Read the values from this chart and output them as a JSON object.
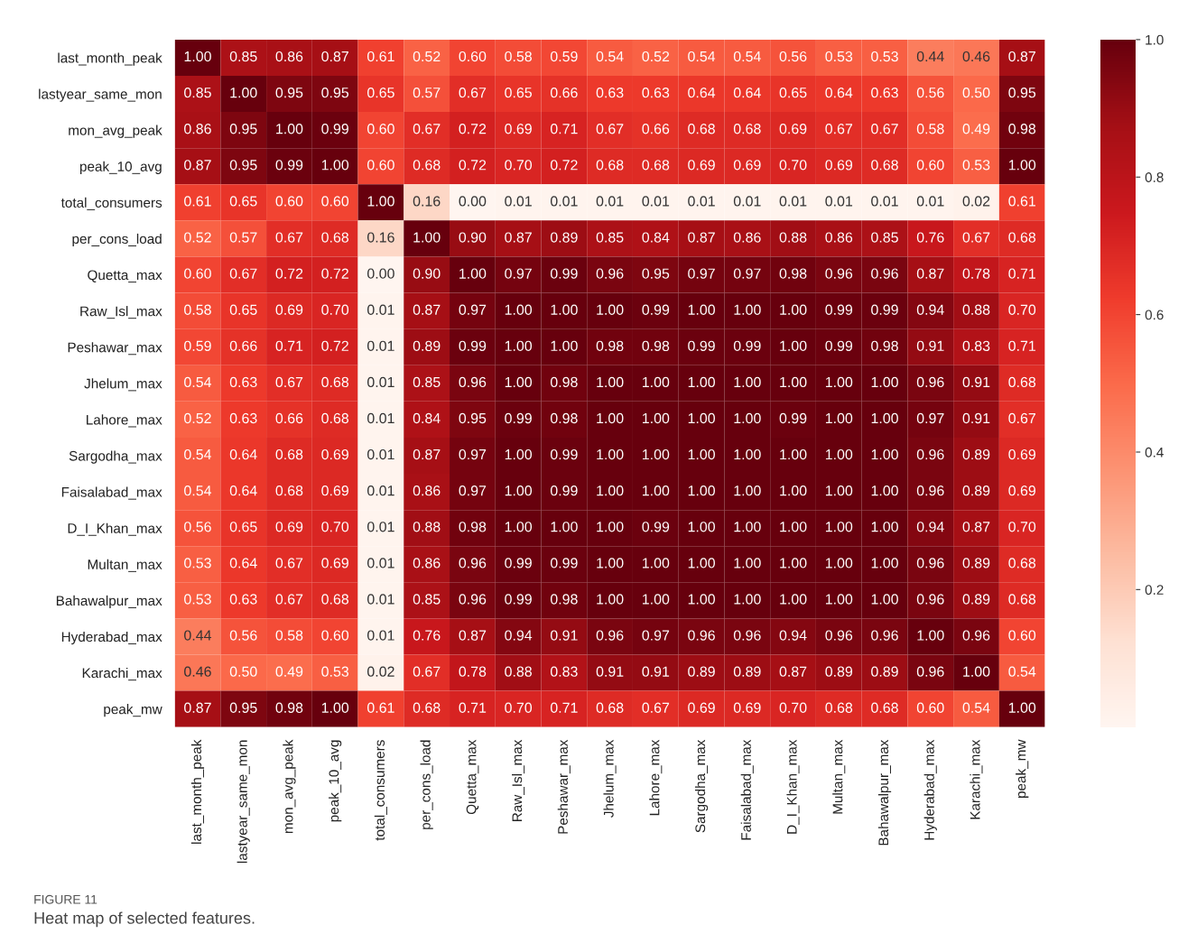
{
  "chart_data": {
    "type": "heatmap",
    "categories": [
      "last_month_peak",
      "lastyear_same_mon",
      "mon_avg_peak",
      "peak_10_avg",
      "total_consumers",
      "per_cons_load",
      "Quetta_max",
      "Raw_Isl_max",
      "Peshawar_max",
      "Jhelum_max",
      "Lahore_max",
      "Sargodha_max",
      "Faisalabad_max",
      "D_I_Khan_max",
      "Multan_max",
      "Bahawalpur_max",
      "Hyderabad_max",
      "Karachi_max",
      "peak_mw"
    ],
    "y_categories": [
      "last_month_peak",
      "lastyear_same_mon",
      "mon_avg_peak",
      "peak_10_avg",
      "total_consumers",
      "per_cons_load",
      "Quetta_max",
      "Raw_Isl_max",
      "Peshawar_max",
      "Jhelum_max",
      "Lahore_max",
      "Sargodha_max",
      "Faisalabad_max",
      "D_I_Khan_max",
      "Multan_max",
      "Bahawalpur_max",
      "Hyderabad_max",
      "Karachi_max",
      "peak_mw"
    ],
    "cells": [
      [
        1.0,
        0.85,
        0.86,
        0.87,
        0.61,
        0.52,
        0.6,
        0.58,
        0.59,
        0.54,
        0.52,
        0.54,
        0.54,
        0.56,
        0.53,
        0.53,
        0.44,
        0.46,
        0.87
      ],
      [
        0.85,
        1.0,
        0.95,
        0.95,
        0.65,
        0.57,
        0.67,
        0.65,
        0.66,
        0.63,
        0.63,
        0.64,
        0.64,
        0.65,
        0.64,
        0.63,
        0.56,
        0.5,
        0.95
      ],
      [
        0.86,
        0.95,
        1.0,
        0.99,
        0.6,
        0.67,
        0.72,
        0.69,
        0.71,
        0.67,
        0.66,
        0.68,
        0.68,
        0.69,
        0.67,
        0.67,
        0.58,
        0.49,
        0.98
      ],
      [
        0.87,
        0.95,
        0.99,
        1.0,
        0.6,
        0.68,
        0.72,
        0.7,
        0.72,
        0.68,
        0.68,
        0.69,
        0.69,
        0.7,
        0.69,
        0.68,
        0.6,
        0.53,
        1.0
      ],
      [
        0.61,
        0.65,
        0.6,
        0.6,
        1.0,
        0.16,
        0.0,
        0.01,
        0.01,
        0.01,
        0.01,
        0.01,
        0.01,
        0.01,
        0.01,
        0.01,
        0.01,
        0.02,
        0.61
      ],
      [
        0.52,
        0.57,
        0.67,
        0.68,
        0.16,
        1.0,
        0.9,
        0.87,
        0.89,
        0.85,
        0.84,
        0.87,
        0.86,
        0.88,
        0.86,
        0.85,
        0.76,
        0.67,
        0.68
      ],
      [
        0.6,
        0.67,
        0.72,
        0.72,
        0.0,
        0.9,
        1.0,
        0.97,
        0.99,
        0.96,
        0.95,
        0.97,
        0.97,
        0.98,
        0.96,
        0.96,
        0.87,
        0.78,
        0.71
      ],
      [
        0.58,
        0.65,
        0.69,
        0.7,
        0.01,
        0.87,
        0.97,
        1.0,
        1.0,
        1.0,
        0.99,
        1.0,
        1.0,
        1.0,
        0.99,
        0.99,
        0.94,
        0.88,
        0.7
      ],
      [
        0.59,
        0.66,
        0.71,
        0.72,
        0.01,
        0.89,
        0.99,
        1.0,
        1.0,
        0.98,
        0.98,
        0.99,
        0.99,
        1.0,
        0.99,
        0.98,
        0.91,
        0.83,
        0.71
      ],
      [
        0.54,
        0.63,
        0.67,
        0.68,
        0.01,
        0.85,
        0.96,
        1.0,
        0.98,
        1.0,
        1.0,
        1.0,
        1.0,
        1.0,
        1.0,
        1.0,
        0.96,
        0.91,
        0.68
      ],
      [
        0.52,
        0.63,
        0.66,
        0.68,
        0.01,
        0.84,
        0.95,
        0.99,
        0.98,
        1.0,
        1.0,
        1.0,
        1.0,
        0.99,
        1.0,
        1.0,
        0.97,
        0.91,
        0.67
      ],
      [
        0.54,
        0.64,
        0.68,
        0.69,
        0.01,
        0.87,
        0.97,
        1.0,
        0.99,
        1.0,
        1.0,
        1.0,
        1.0,
        1.0,
        1.0,
        1.0,
        0.96,
        0.89,
        0.69
      ],
      [
        0.54,
        0.64,
        0.68,
        0.69,
        0.01,
        0.86,
        0.97,
        1.0,
        0.99,
        1.0,
        1.0,
        1.0,
        1.0,
        1.0,
        1.0,
        1.0,
        0.96,
        0.89,
        0.69
      ],
      [
        0.56,
        0.65,
        0.69,
        0.7,
        0.01,
        0.88,
        0.98,
        1.0,
        1.0,
        1.0,
        0.99,
        1.0,
        1.0,
        1.0,
        1.0,
        1.0,
        0.94,
        0.87,
        0.7
      ],
      [
        0.53,
        0.64,
        0.67,
        0.69,
        0.01,
        0.86,
        0.96,
        0.99,
        0.99,
        1.0,
        1.0,
        1.0,
        1.0,
        1.0,
        1.0,
        1.0,
        0.96,
        0.89,
        0.68
      ],
      [
        0.53,
        0.63,
        0.67,
        0.68,
        0.01,
        0.85,
        0.96,
        0.99,
        0.98,
        1.0,
        1.0,
        1.0,
        1.0,
        1.0,
        1.0,
        1.0,
        0.96,
        0.89,
        0.68
      ],
      [
        0.44,
        0.56,
        0.58,
        0.6,
        0.01,
        0.76,
        0.87,
        0.94,
        0.91,
        0.96,
        0.97,
        0.96,
        0.96,
        0.94,
        0.96,
        0.96,
        1.0,
        0.96,
        0.6
      ],
      [
        0.46,
        0.5,
        0.49,
        0.53,
        0.02,
        0.67,
        0.78,
        0.88,
        0.83,
        0.91,
        0.91,
        0.89,
        0.89,
        0.87,
        0.89,
        0.89,
        0.96,
        1.0,
        0.54
      ],
      [
        0.87,
        0.95,
        0.98,
        1.0,
        0.61,
        0.68,
        0.71,
        0.7,
        0.71,
        0.68,
        0.67,
        0.69,
        0.69,
        0.7,
        0.68,
        0.68,
        0.6,
        0.54,
        1.0
      ]
    ],
    "cell_labels": [
      [
        "1.00",
        "0.85",
        "0.86",
        "0.87",
        "0.61",
        "0.52",
        "0.60",
        "0.58",
        "0.59",
        "0.54",
        "0.52",
        "0.54",
        "0.54",
        "0.56",
        "0.53",
        "0.53",
        "0.44",
        "0.46",
        "0.87"
      ],
      [
        "0.85",
        "1.00",
        "0.95",
        "0.95",
        "0.65",
        "0.57",
        "0.67",
        "0.65",
        "0.66",
        "0.63",
        "0.63",
        "0.64",
        "0.64",
        "0.65",
        "0.64",
        "0.63",
        "0.56",
        "0.50",
        "0.95"
      ],
      [
        "0.86",
        "0.95",
        "1.00",
        "0.99",
        "0.60",
        "0.67",
        "0.72",
        "0.69",
        "0.71",
        "0.67",
        "0.66",
        "0.68",
        "0.68",
        "0.69",
        "0.67",
        "0.67",
        "0.58",
        "0.49",
        "0.98"
      ],
      [
        "0.87",
        "0.95",
        "0.99",
        "1.00",
        "0.60",
        "0.68",
        "0.72",
        "0.70",
        "0.72",
        "0.68",
        "0.68",
        "0.69",
        "0.69",
        "0.70",
        "0.69",
        "0.68",
        "0.60",
        "0.53",
        "1.00"
      ],
      [
        "0.61",
        "0.65",
        "0.60",
        "0.60",
        "1.00",
        "0.16",
        "0.00",
        "0.01",
        "0.01",
        "0.01",
        "0.01",
        "0.01",
        "0.01",
        "0.01",
        "0.01",
        "0.01",
        "0.01",
        "0.02",
        "0.61"
      ],
      [
        "0.52",
        "0.57",
        "0.67",
        "0.68",
        "0.16",
        "1.00",
        "0.90",
        "0.87",
        "0.89",
        "0.85",
        "0.84",
        "0.87",
        "0.86",
        "0.88",
        "0.86",
        "0.85",
        "0.76",
        "0.67",
        "0.68"
      ],
      [
        "0.60",
        "0.67",
        "0.72",
        "0.72",
        "0.00",
        "0.90",
        "1.00",
        "0.97",
        "0.99",
        "0.96",
        "0.95",
        "0.97",
        "0.97",
        "0.98",
        "0.96",
        "0.96",
        "0.87",
        "0.78",
        "0.71"
      ],
      [
        "0.58",
        "0.65",
        "0.69",
        "0.70",
        "0.01",
        "0.87",
        "0.97",
        "1.00",
        "1.00",
        "1.00",
        "0.99",
        "1.00",
        "1.00",
        "1.00",
        "0.99",
        "0.99",
        "0.94",
        "0.88",
        "0.70"
      ],
      [
        "0.59",
        "0.66",
        "0.71",
        "0.72",
        "0.01",
        "0.89",
        "0.99",
        "1.00",
        "1.00",
        "0.98",
        "0.98",
        "0.99",
        "0.99",
        "1.00",
        "0.99",
        "0.98",
        "0.91",
        "0.83",
        "0.71"
      ],
      [
        "0.54",
        "0.63",
        "0.67",
        "0.68",
        "0.01",
        "0.85",
        "0.96",
        "1.00",
        "0.98",
        "1.00",
        "1.00",
        "1.00",
        "1.00",
        "1.00",
        "1.00",
        "1.00",
        "0.96",
        "0.91",
        "0.68"
      ],
      [
        "0.52",
        "0.63",
        "0.66",
        "0.68",
        "0.01",
        "0.84",
        "0.95",
        "0.99",
        "0.98",
        "1.00",
        "1.00",
        "1.00",
        "1.00",
        "0.99",
        "1.00",
        "1.00",
        "0.97",
        "0.91",
        "0.67"
      ],
      [
        "0.54",
        "0.64",
        "0.68",
        "0.69",
        "0.01",
        "0.87",
        "0.97",
        "1.00",
        "0.99",
        "1.00",
        "1.00",
        "1.00",
        "1.00",
        "1.00",
        "1.00",
        "1.00",
        "0.96",
        "0.89",
        "0.69"
      ],
      [
        "0.54",
        "0.64",
        "0.68",
        "0.69",
        "0.01",
        "0.86",
        "0.97",
        "1.00",
        "0.99",
        "1.00",
        "1.00",
        "1.00",
        "1.00",
        "1.00",
        "1.00",
        "1.00",
        "0.96",
        "0.89",
        "0.69"
      ],
      [
        "0.56",
        "0.65",
        "0.69",
        "0.70",
        "0.01",
        "0.88",
        "0.98",
        "1.00",
        "1.00",
        "1.00",
        "0.99",
        "1.00",
        "1.00",
        "1.00",
        "1.00",
        "1.00",
        "0.94",
        "0.87",
        "0.70"
      ],
      [
        "0.53",
        "0.64",
        "0.67",
        "0.69",
        "0.01",
        "0.86",
        "0.96",
        "0.99",
        "0.99",
        "1.00",
        "1.00",
        "1.00",
        "1.00",
        "1.00",
        "1.00",
        "1.00",
        "0.96",
        "0.89",
        "0.68"
      ],
      [
        "0.53",
        "0.63",
        "0.67",
        "0.68",
        "0.01",
        "0.85",
        "0.96",
        "0.99",
        "0.98",
        "1.00",
        "1.00",
        "1.00",
        "1.00",
        "1.00",
        "1.00",
        "1.00",
        "0.96",
        "0.89",
        "0.68"
      ],
      [
        "0.44",
        "0.56",
        "0.58",
        "0.60",
        "0.01",
        "0.76",
        "0.87",
        "0.94",
        "0.91",
        "0.96",
        "0.97",
        "0.96",
        "0.96",
        "0.94",
        "0.96",
        "0.96",
        "1.00",
        "0.96",
        "0.60"
      ],
      [
        "0.46",
        "0.50",
        "0.49",
        "0.53",
        "0.02",
        "0.67",
        "0.78",
        "0.88",
        "0.83",
        "0.91",
        "0.91",
        "0.89",
        "0.89",
        "0.87",
        "0.89",
        "0.89",
        "0.96",
        "1.00",
        "0.54"
      ],
      [
        "0.87",
        "0.95",
        "0.98",
        "1.00",
        "0.61",
        "0.68",
        "0.71",
        "0.70",
        "0.71",
        "0.68",
        "0.67",
        "0.69",
        "0.69",
        "0.70",
        "0.68",
        "0.68",
        "0.60",
        "0.54",
        "1.00"
      ]
    ],
    "clim": [
      0,
      1
    ],
    "cticks": [
      0.2,
      0.4,
      0.6,
      0.8,
      {
        "value": 1,
        "label": "1.0"
      }
    ],
    "annotations": [
      "FIGURE 11",
      "Heat map of selected features."
    ]
  }
}
